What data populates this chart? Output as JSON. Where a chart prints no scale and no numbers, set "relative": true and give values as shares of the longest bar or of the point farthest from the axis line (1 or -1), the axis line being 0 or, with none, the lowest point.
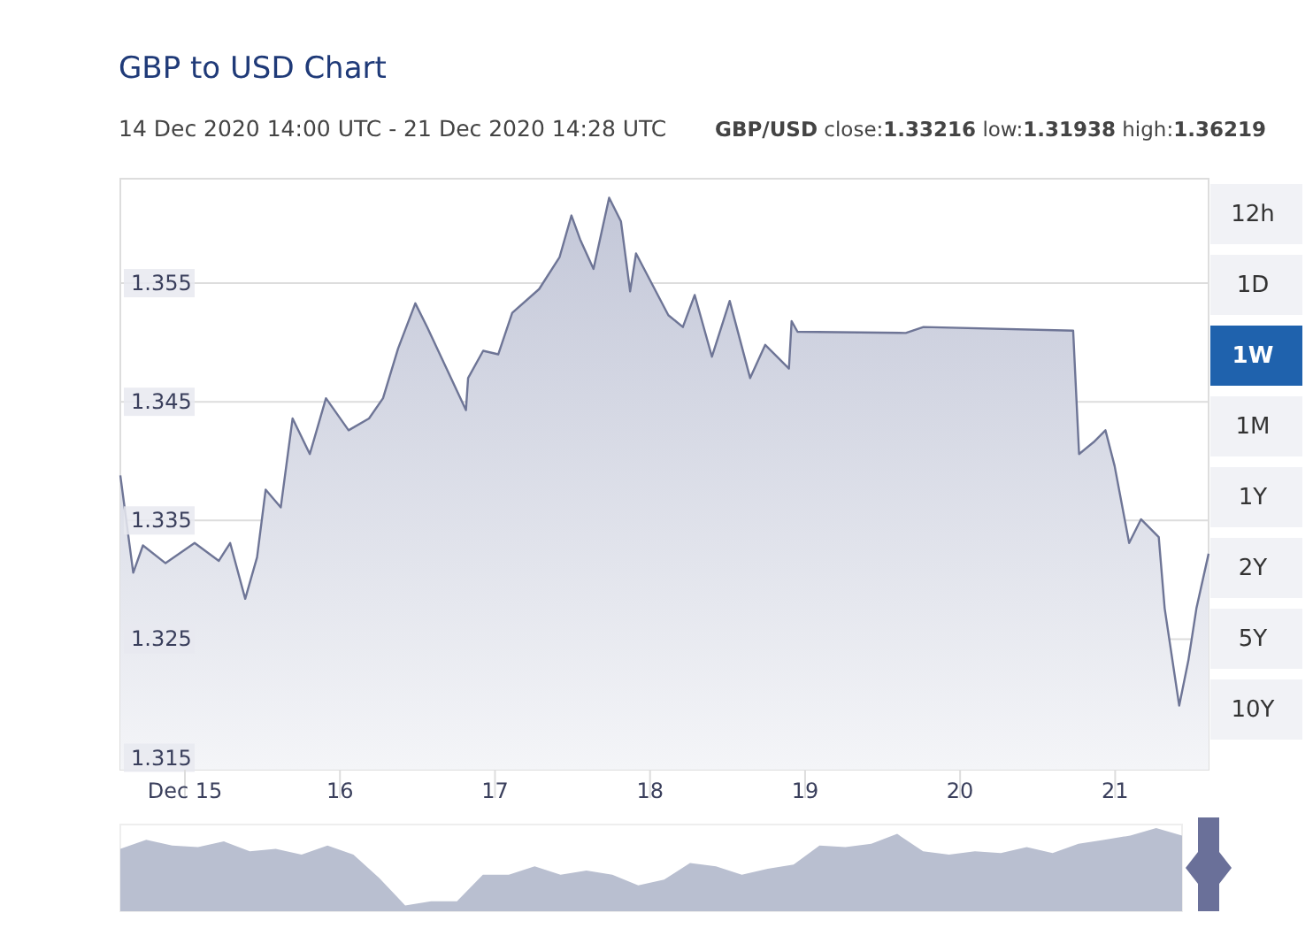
{
  "chart_data": [
    {
      "type": "area",
      "title": "GBP to USD Chart",
      "subtitle": "14 Dec 2020 14:00 UTC - 21 Dec 2020 14:28 UTC",
      "annotations": [
        "GBP/USD close:1.33216 low:1.31938 high:1.36219",
        "12h",
        "1D",
        "1W",
        "1M",
        "1Y",
        "2Y",
        "5Y",
        "10Y"
      ],
      "x": [
        "2020-12-14T14:00",
        "2020-12-14T16:00",
        "2020-12-14T17:30",
        "2020-12-14T21:00",
        "2020-12-15T01:30",
        "2020-12-15T05:15",
        "2020-12-15T07:00",
        "2020-12-15T09:20",
        "2020-12-15T11:10",
        "2020-12-15T12:30",
        "2020-12-15T14:50",
        "2020-12-15T16:40",
        "2020-12-15T19:20",
        "2020-12-15T21:50",
        "2020-12-16T01:20",
        "2020-12-16T04:30",
        "2020-12-16T06:40",
        "2020-12-16T09:00",
        "2020-12-16T11:40",
        "2020-12-16T13:30",
        "2020-12-16T16:20",
        "2020-12-16T19:30",
        "2020-12-16T19:50",
        "2020-12-16T22:10",
        "2020-12-17T00:30",
        "2020-12-17T02:40",
        "2020-12-17T06:50",
        "2020-12-17T10:00",
        "2020-12-17T11:50",
        "2020-12-17T13:10",
        "2020-12-17T15:15",
        "2020-12-17T17:40",
        "2020-12-17T19:30",
        "2020-12-17T20:55",
        "2020-12-17T21:50",
        "2020-12-18T02:50",
        "2020-12-18T05:05",
        "2020-12-18T06:55",
        "2020-12-18T09:35",
        "2020-12-18T12:20",
        "2020-12-18T15:30",
        "2020-12-18T17:50",
        "2020-12-18T21:30",
        "2020-12-18T21:55",
        "2020-12-18T22:50",
        "2020-12-19T15:35",
        "2020-12-19T18:20",
        "2020-12-20T17:30",
        "2020-12-20T18:25",
        "2020-12-20T20:40",
        "2020-12-20T22:30",
        "2020-12-20T23:55",
        "2020-12-21T02:10",
        "2020-12-21T04:00",
        "2020-12-21T06:45",
        "2020-12-21T07:40",
        "2020-12-21T09:55",
        "2020-12-21T11:20",
        "2020-12-21T12:35",
        "2020-12-21T14:28"
      ],
      "series": [
        {
          "color": "#6e7596",
          "values": [
            1.3388,
            1.3306,
            1.3329,
            1.3314,
            1.3331,
            1.3316,
            1.3331,
            1.3284,
            1.3319,
            1.3376,
            1.3361,
            1.3436,
            1.3406,
            1.3453,
            1.3426,
            1.3436,
            1.3453,
            1.3495,
            1.3533,
            1.3513,
            1.348,
            1.3443,
            1.347,
            1.3493,
            1.349,
            1.3525,
            1.3545,
            1.3572,
            1.3607,
            1.3587,
            1.3562,
            1.3622,
            1.3602,
            1.3543,
            1.3575,
            1.3523,
            1.3513,
            1.354,
            1.3488,
            1.3535,
            1.347,
            1.3498,
            1.3478,
            1.3518,
            1.3509,
            1.3508,
            1.3513,
            1.351,
            1.3406,
            1.3416,
            1.3426,
            1.3396,
            1.3331,
            1.3351,
            1.3336,
            1.3276,
            1.3194,
            1.3232,
            1.3276,
            1.3322
          ]
        }
      ],
      "xlim": [
        "2020-12-14T14:00",
        "2020-12-21T14:28"
      ],
      "xticks": [
        {
          "value": "2020-12-15",
          "label": "Dec 15"
        },
        {
          "value": "2020-12-16",
          "label": "16"
        },
        {
          "value": "2020-12-17",
          "label": "17"
        },
        {
          "value": "2020-12-18",
          "label": "18"
        },
        {
          "value": "2020-12-19",
          "label": "19"
        },
        {
          "value": "2020-12-20",
          "label": "20"
        },
        {
          "value": "2020-12-21",
          "label": "21"
        }
      ],
      "ylim": [
        1.314,
        1.3638
      ],
      "yticks": [
        1.315,
        1.325,
        1.335,
        1.345,
        1.355
      ],
      "grid": "y"
    },
    {
      "type": "area",
      "relative": true,
      "categories": [
        null,
        null,
        null,
        null,
        null,
        null,
        null,
        null,
        null,
        null,
        null,
        null,
        null,
        null,
        null,
        null,
        null,
        null,
        null,
        null,
        null,
        null,
        null,
        null,
        null,
        null,
        null,
        null,
        null,
        null,
        null,
        null,
        null,
        null,
        null,
        null,
        null,
        null,
        null,
        null,
        null,
        null
      ],
      "series": [
        {
          "color": "#b9bfd0",
          "values": [
            0.75,
            0.86,
            0.79,
            0.77,
            0.84,
            0.72,
            0.75,
            0.68,
            0.79,
            0.68,
            0.4,
            0.07,
            0.12,
            0.12,
            0.44,
            0.44,
            0.54,
            0.44,
            0.49,
            0.44,
            0.31,
            0.38,
            0.58,
            0.54,
            0.44,
            0.51,
            0.56,
            0.79,
            0.77,
            0.81,
            0.93,
            0.72,
            0.68,
            0.72,
            0.7,
            0.77,
            0.7,
            0.81,
            0.86,
            0.91,
            1,
            0.91
          ]
        }
      ]
    }
  ]
}
